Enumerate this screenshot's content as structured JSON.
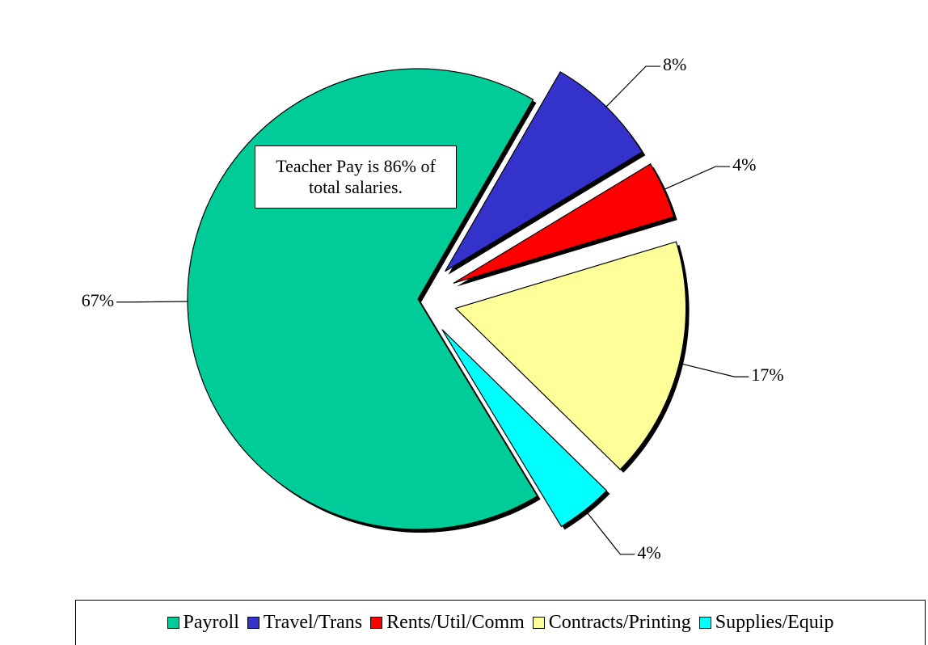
{
  "chart_data": {
    "type": "pie",
    "categories": [
      "Payroll",
      "Travel/Trans",
      "Rents/Util/Comm",
      "Contracts/Printing",
      "Supplies/Equip"
    ],
    "values": [
      67,
      8,
      4,
      17,
      4
    ],
    "value_labels": [
      "67%",
      "8%",
      "4%",
      "17%",
      "4%"
    ],
    "colors": [
      "#00cc99",
      "#3333cc",
      "#ff0000",
      "#ffff99",
      "#00ffff"
    ],
    "annotation": "Teacher Pay is 86% of total salaries.",
    "legend": "bottom"
  }
}
